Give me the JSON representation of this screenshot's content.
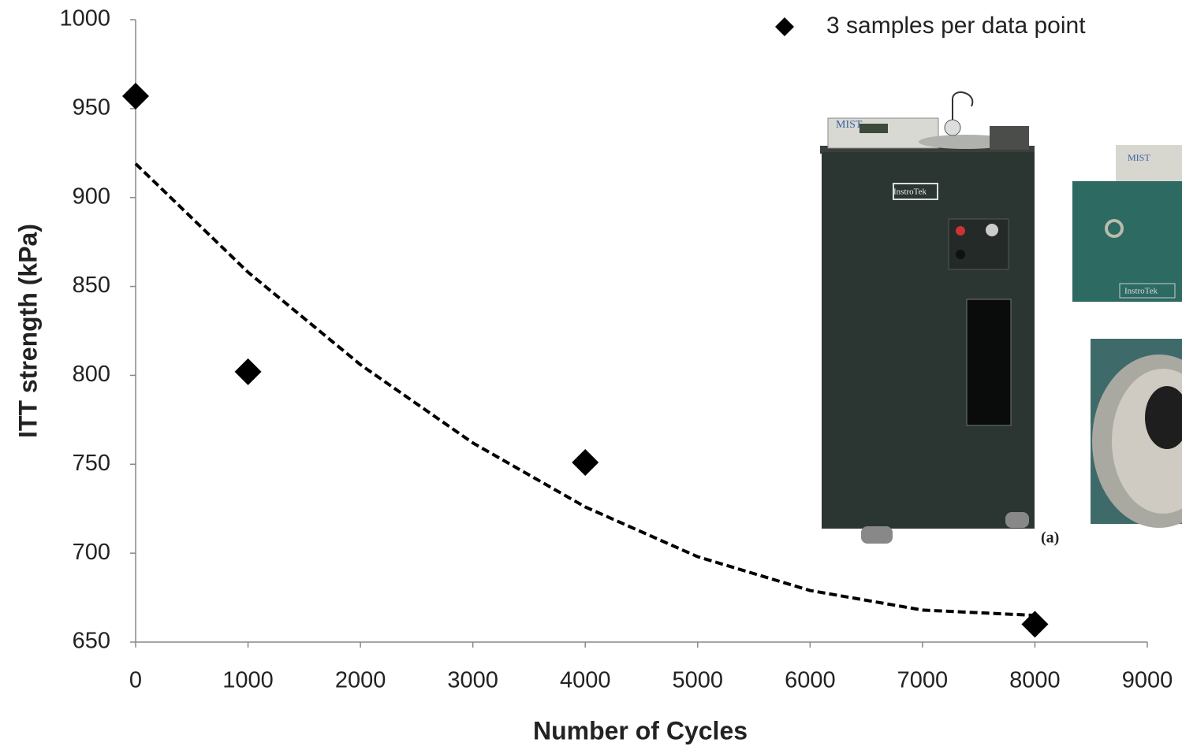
{
  "chart_data": {
    "type": "scatter",
    "xlabel": "Number of Cycles",
    "ylabel": "ITT strength  (kPa)",
    "xlim": [
      0,
      9000
    ],
    "ylim": [
      650,
      1000
    ],
    "xticks": [
      0,
      1000,
      2000,
      3000,
      4000,
      5000,
      6000,
      7000,
      8000,
      9000
    ],
    "yticks": [
      650,
      700,
      750,
      800,
      850,
      900,
      950,
      1000
    ],
    "series": [
      {
        "name": "3 samples per data point",
        "color": "#000000",
        "x": [
          0,
          1000,
          4000,
          8000
        ],
        "values": [
          957,
          802,
          751,
          660
        ]
      }
    ],
    "trendline": {
      "color": "#000000",
      "x": [
        0,
        1000,
        2000,
        3000,
        4000,
        5000,
        6000,
        7000,
        8000
      ],
      "values": [
        919,
        858,
        806,
        762,
        726,
        698,
        679,
        668,
        665
      ]
    },
    "legend": "upper right",
    "grid": false,
    "annotations": [
      "(a)"
    ],
    "photo_labels": [
      "MIST",
      "InstroTek",
      "MIST",
      "InstroTek"
    ]
  }
}
